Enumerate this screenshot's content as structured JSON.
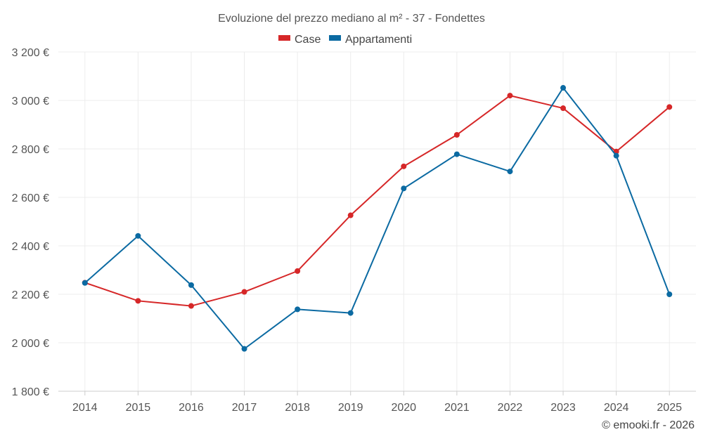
{
  "chart_data": {
    "type": "line",
    "title": "Evoluzione del prezzo mediano al m² - 37 - Fondettes",
    "categories": [
      "2014",
      "2015",
      "2016",
      "2017",
      "2018",
      "2019",
      "2020",
      "2021",
      "2022",
      "2023",
      "2024",
      "2025"
    ],
    "y_ticks": [
      1800,
      2000,
      2200,
      2400,
      2600,
      2800,
      3000,
      3200
    ],
    "y_tick_labels": [
      "1 800 €",
      "2 000 €",
      "2 200 €",
      "2 400 €",
      "2 600 €",
      "2 800 €",
      "3 000 €",
      "3 200 €"
    ],
    "ylim": [
      1800,
      3200
    ],
    "xlabel": "",
    "ylabel": "",
    "grid": true,
    "legend_position": "top-center",
    "series": [
      {
        "name": "Case",
        "color": "#d62728",
        "values": [
          2248,
          2173,
          2152,
          2210,
          2296,
          2526,
          2728,
          2858,
          3020,
          2968,
          2789,
          2973
        ]
      },
      {
        "name": "Appartamenti",
        "color": "#0b6aa2",
        "values": [
          2247,
          2441,
          2238,
          1975,
          2138,
          2123,
          2637,
          2778,
          2707,
          3052,
          2772,
          2200
        ]
      }
    ]
  },
  "credit": "© emooki.fr - 2026"
}
